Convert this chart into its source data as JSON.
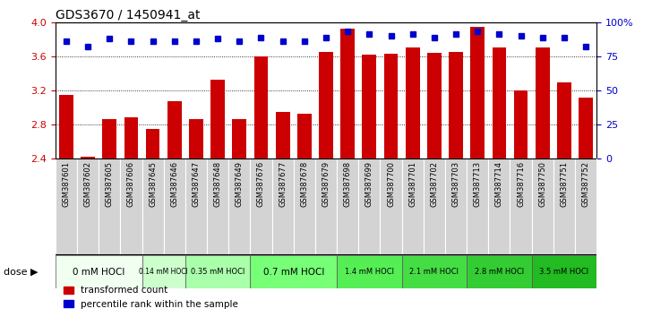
{
  "title": "GDS3670 / 1450941_at",
  "samples": [
    "GSM387601",
    "GSM387602",
    "GSM387605",
    "GSM387606",
    "GSM387645",
    "GSM387646",
    "GSM387647",
    "GSM387648",
    "GSM387649",
    "GSM387676",
    "GSM387677",
    "GSM387678",
    "GSM387679",
    "GSM387698",
    "GSM387699",
    "GSM387700",
    "GSM387701",
    "GSM387702",
    "GSM387703",
    "GSM387713",
    "GSM387714",
    "GSM387716",
    "GSM387750",
    "GSM387751",
    "GSM387752"
  ],
  "bar_values": [
    3.15,
    2.42,
    2.86,
    2.88,
    2.75,
    3.07,
    2.86,
    3.32,
    2.86,
    3.6,
    2.95,
    2.93,
    3.65,
    3.92,
    3.62,
    3.63,
    3.7,
    3.64,
    3.65,
    3.94,
    3.7,
    3.2,
    3.7,
    3.29,
    3.12
  ],
  "percentile_values": [
    86,
    82,
    88,
    86,
    86,
    86,
    86,
    88,
    86,
    89,
    86,
    86,
    89,
    93,
    91,
    90,
    91,
    89,
    91,
    93,
    91,
    90,
    89,
    89,
    82
  ],
  "dose_groups": [
    {
      "label": "0 mM HOCl",
      "start": 0,
      "end": 4,
      "color": "#f0fff0"
    },
    {
      "label": "0.14 mM HOCl",
      "start": 4,
      "end": 6,
      "color": "#ccffcc"
    },
    {
      "label": "0.35 mM HOCl",
      "start": 6,
      "end": 9,
      "color": "#aaffaa"
    },
    {
      "label": "0.7 mM HOCl",
      "start": 9,
      "end": 13,
      "color": "#77ff77"
    },
    {
      "label": "1.4 mM HOCl",
      "start": 13,
      "end": 16,
      "color": "#55ee55"
    },
    {
      "label": "2.1 mM HOCl",
      "start": 16,
      "end": 19,
      "color": "#44dd44"
    },
    {
      "label": "2.8 mM HOCl",
      "start": 19,
      "end": 22,
      "color": "#33cc33"
    },
    {
      "label": "3.5 mM HOCl",
      "start": 22,
      "end": 25,
      "color": "#22bb22"
    }
  ],
  "group_colors": [
    "#f0fff0",
    "#ccffcc",
    "#aaffaa",
    "#77ff77",
    "#55ee55",
    "#44dd44",
    "#33cc33",
    "#22bb22"
  ],
  "ylim": [
    2.4,
    4.0
  ],
  "yticks": [
    2.4,
    2.8,
    3.2,
    3.6,
    4.0
  ],
  "bar_color": "#cc0000",
  "percentile_color": "#0000cc",
  "background_color": "#ffffff",
  "legend_red": "transformed count",
  "legend_blue": "percentile rank within the sample"
}
